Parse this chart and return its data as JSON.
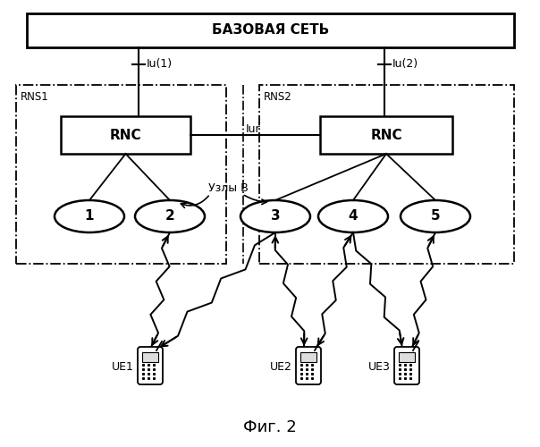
{
  "title": "Фиг. 2",
  "core_network_label": "БАЗОВАЯ СЕТЬ",
  "rns1_label": "RNS1",
  "rns2_label": "RNS2",
  "rnc1_label": "RNC",
  "rnc2_label": "RNC",
  "iur_label": "Iur",
  "iu1_label": "Iu(1)",
  "iu2_label": "Iu(2)",
  "nodes_b_label": "Узлы В",
  "node_labels": [
    "1",
    "2",
    "3",
    "4",
    "5"
  ],
  "ue_labels": [
    "UE1",
    "UE2",
    "UE3"
  ],
  "bg_color": "#ffffff"
}
